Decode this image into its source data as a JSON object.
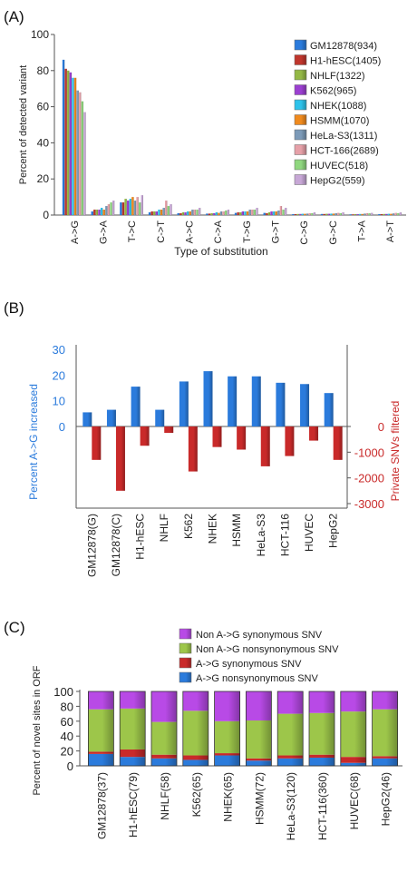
{
  "panels": {
    "a": {
      "label": "(A)"
    },
    "b": {
      "label": "(B)"
    },
    "c": {
      "label": "(C)"
    }
  },
  "chart_data": [
    {
      "type": "bar",
      "panel": "A",
      "ylabel": "Percent of detected variant",
      "xlabel": "Type of substitution",
      "ylim": [
        0,
        100
      ],
      "yticks": [
        0,
        20,
        40,
        60,
        80,
        100
      ],
      "grid": false,
      "legend": "top-right",
      "categories": [
        "A->G",
        "G->A",
        "T->C",
        "C->T",
        "A->C",
        "C->A",
        "T->G",
        "G->T",
        "C->G",
        "G->C",
        "T->A",
        "A->T"
      ],
      "series": [
        {
          "name": "GM12878(934)",
          "color": "#2b7bdc",
          "values": [
            86,
            2,
            7,
            1.5,
            1,
            0.8,
            1.2,
            1.2,
            0.5,
            0.6,
            0.4,
            0.5
          ]
        },
        {
          "name": "H1-hESC(1405)",
          "color": "#c0362c",
          "values": [
            81,
            3,
            7,
            2,
            1,
            0.8,
            1.5,
            1,
            0.5,
            0.6,
            0.4,
            0.5
          ]
        },
        {
          "name": "NHLF(1322)",
          "color": "#93b845",
          "values": [
            80,
            3,
            9,
            2,
            1.5,
            1,
            1.5,
            1.5,
            0.6,
            0.7,
            0.5,
            0.6
          ]
        },
        {
          "name": "K562(965)",
          "color": "#9b3fd1",
          "values": [
            79,
            3,
            8,
            2,
            1.5,
            1,
            2,
            2,
            0.6,
            0.7,
            0.5,
            0.6
          ]
        },
        {
          "name": "NHEK(1088)",
          "color": "#2ec2ea",
          "values": [
            76,
            4,
            9,
            3,
            2,
            1.5,
            2,
            2,
            0.7,
            0.8,
            0.6,
            0.7
          ]
        },
        {
          "name": "HSMM(1070)",
          "color": "#f08a1d",
          "values": [
            76,
            3,
            10,
            3,
            2,
            1.2,
            2,
            2,
            0.7,
            0.8,
            0.6,
            0.7
          ]
        },
        {
          "name": "HeLa-S3(1311)",
          "color": "#7c9ab8",
          "values": [
            69,
            5,
            8,
            4,
            3,
            2,
            3,
            2.5,
            0.8,
            1,
            0.8,
            0.9
          ]
        },
        {
          "name": "HCT-166(2689)",
          "color": "#e6a0a8",
          "values": [
            68,
            6,
            10,
            8,
            3,
            2,
            3,
            5,
            1,
            1.2,
            1,
            1.2
          ]
        },
        {
          "name": "HUVEC(518)",
          "color": "#8fd77f",
          "values": [
            63,
            7,
            7,
            5,
            3,
            2.5,
            3,
            3,
            1,
            1,
            1,
            1
          ]
        },
        {
          "name": "HepG2(559)",
          "color": "#c7a7d6",
          "values": [
            57,
            8,
            11,
            6,
            4,
            3,
            4,
            4,
            1.5,
            1.5,
            1.2,
            1.5
          ]
        }
      ]
    },
    {
      "type": "bar",
      "panel": "B",
      "categories": [
        "GM12878(G)",
        "GM12878(C)",
        "H1-hESC",
        "NHLF",
        "K562",
        "NHEK",
        "HSMM",
        "HeLa-S3",
        "HCT-116",
        "HUVEC",
        "HepG2"
      ],
      "series": [
        {
          "name": "Percent A->G increased",
          "axis": "left",
          "color": "#2b7bdc",
          "values": [
            5.5,
            6.5,
            15.5,
            6.5,
            17.5,
            21.5,
            19.5,
            19.5,
            17,
            16.5,
            13
          ]
        },
        {
          "name": "Private SNVs filtered",
          "axis": "right",
          "color": "#c92a2a",
          "values": [
            -1300,
            -2500,
            -750,
            -250,
            -1750,
            -800,
            -900,
            -1550,
            -1150,
            -550,
            -1300
          ]
        }
      ],
      "ylabel_left": "Percent A->G increased",
      "ylabel_right": "Private SNVs filtered",
      "ylim_left": [
        0,
        30
      ],
      "yticks_left": [
        0,
        10,
        20,
        30
      ],
      "ylim_right": [
        -3000,
        0
      ],
      "yticks_right": [
        0,
        -1000,
        -2000,
        -3000
      ],
      "grid": false
    },
    {
      "type": "bar",
      "stacked": true,
      "panel": "C",
      "ylabel": "Percent of novel sites in ORF",
      "ylim": [
        0,
        100
      ],
      "yticks": [
        0,
        20,
        40,
        60,
        80,
        100
      ],
      "grid": false,
      "legend": "top",
      "categories": [
        "GM12878(37)",
        "H1-hESC(79)",
        "NHLF(58)",
        "K562(65)",
        "NHEK(65)",
        "HSMM(72)",
        "HeLa-S3(120)",
        "HCT-116(360)",
        "HUVEC(68)",
        "HepG2(46)"
      ],
      "series": [
        {
          "name": "A->G nonsynonymous SNV",
          "color": "#2b7bdc",
          "values": [
            16,
            12,
            10,
            8,
            14,
            7,
            10,
            11,
            4,
            10
          ]
        },
        {
          "name": "A->G synonymous SNV",
          "color": "#c92a2a",
          "values": [
            3,
            10,
            5,
            6,
            3,
            3,
            4,
            4,
            8,
            3
          ]
        },
        {
          "name": "Non A->G nonsynonymous SNV",
          "color": "#9dc64a",
          "values": [
            57,
            55,
            44,
            60,
            43,
            51,
            56,
            56,
            61,
            63
          ]
        },
        {
          "name": "Non A->G synonymous SNV",
          "color": "#b84ae6",
          "values": [
            24,
            23,
            41,
            26,
            40,
            39,
            30,
            29,
            27,
            24
          ]
        }
      ]
    }
  ]
}
